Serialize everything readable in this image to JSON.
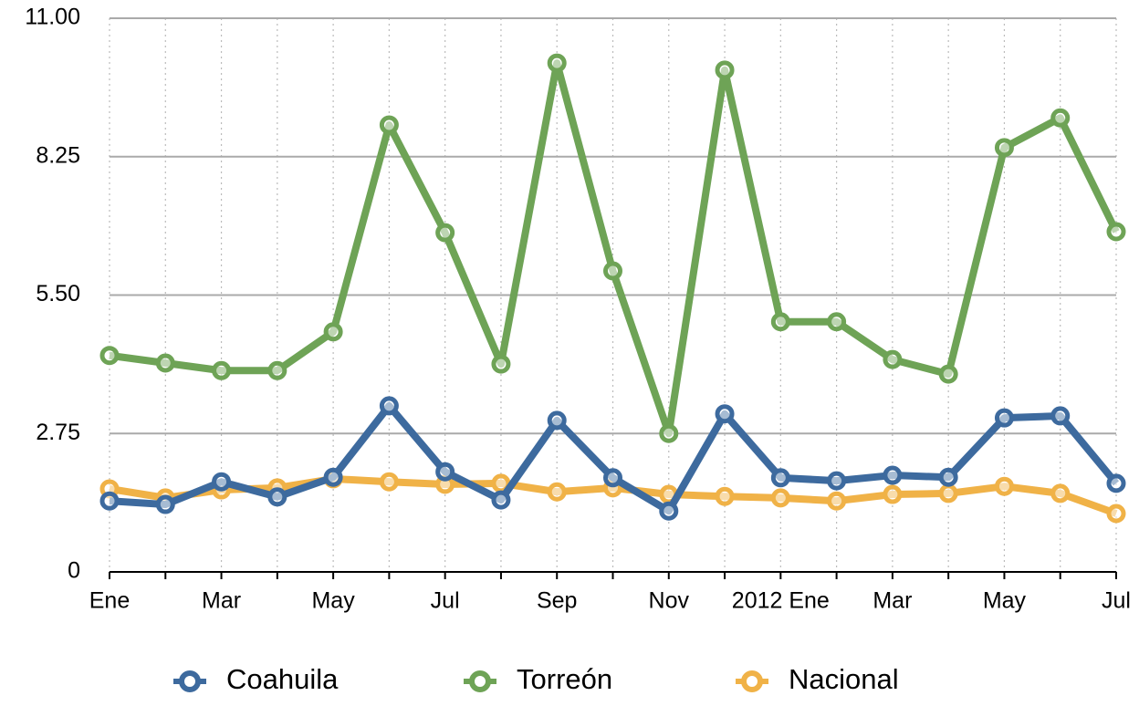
{
  "chart_data": {
    "type": "line",
    "categories": [
      "Ene",
      null,
      "Mar",
      null,
      "May",
      null,
      "Jul",
      null,
      "Sep",
      null,
      "Nov",
      null,
      "2012 Ene",
      null,
      "Mar",
      null,
      "May",
      null,
      "Jul"
    ],
    "series": [
      {
        "name": "Coahuila",
        "color": "#3d6a9e",
        "values": [
          1.41,
          1.34,
          1.79,
          1.49,
          1.88,
          3.3,
          1.99,
          1.43,
          3.01,
          1.87,
          1.21,
          3.14,
          1.87,
          1.81,
          1.92,
          1.88,
          3.06,
          3.1,
          1.76
        ]
      },
      {
        "name": "Torreón",
        "color": "#6ea356",
        "values": [
          4.3,
          4.15,
          4.0,
          4.0,
          4.77,
          8.88,
          6.74,
          4.13,
          10.11,
          5.98,
          2.75,
          9.97,
          4.97,
          4.97,
          4.22,
          3.93,
          8.43,
          9.02,
          6.76
        ]
      },
      {
        "name": "Nacional",
        "color": "#f0b247",
        "values": [
          1.65,
          1.47,
          1.63,
          1.67,
          1.85,
          1.79,
          1.74,
          1.76,
          1.59,
          1.67,
          1.54,
          1.5,
          1.47,
          1.41,
          1.54,
          1.56,
          1.7,
          1.56,
          1.16
        ]
      }
    ],
    "ylim": [
      0,
      11
    ],
    "yticks": [
      0,
      2.75,
      {
        "value": 5.5,
        "label": "5.50"
      },
      {
        "value": 8.25,
        "label": "8.25"
      },
      {
        "value": 11,
        "label": "11.00"
      }
    ],
    "grid": true
  }
}
